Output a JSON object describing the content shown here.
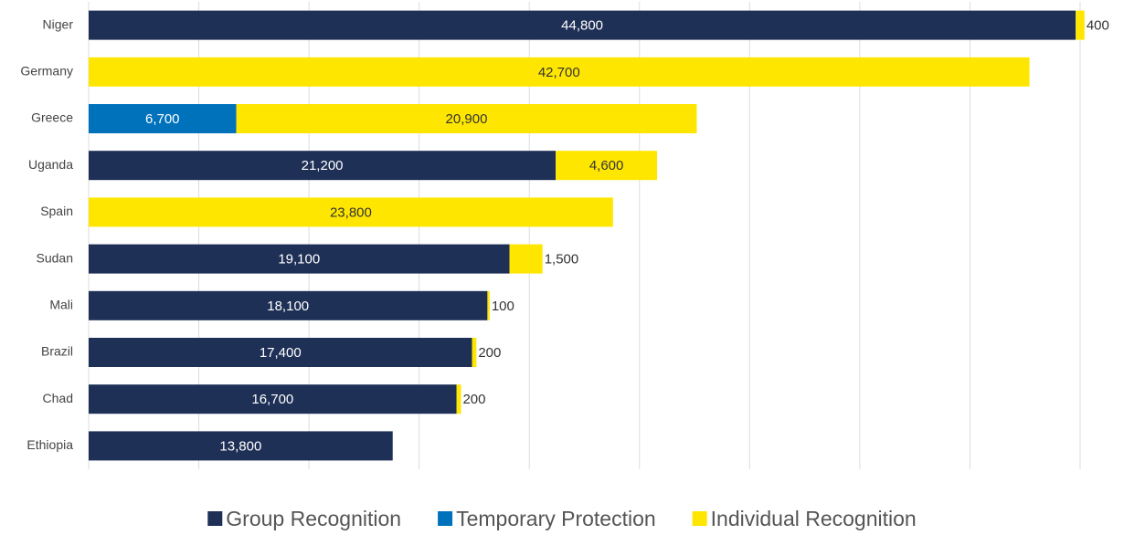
{
  "chart_data": {
    "type": "stacked_barh",
    "categories": [
      "Niger",
      "Germany",
      "Greece",
      "Uganda",
      "Spain",
      "Sudan",
      "Mali",
      "Brazil",
      "Chad",
      "Ethiopia"
    ],
    "series": [
      {
        "name": "Group Recognition",
        "color": "#1f3057",
        "values": [
          44800,
          null,
          null,
          21200,
          null,
          19100,
          18100,
          17400,
          16700,
          13800
        ],
        "value_labels": [
          "44,800",
          null,
          null,
          "21,200",
          null,
          "19,100",
          "18,100",
          "17,400",
          "16,700",
          "13,800"
        ]
      },
      {
        "name": "Temporary Protection",
        "color": "#0072bc",
        "values": [
          null,
          null,
          6700,
          null,
          null,
          null,
          null,
          null,
          null,
          null
        ],
        "value_labels": [
          null,
          null,
          "6,700",
          null,
          null,
          null,
          null,
          null,
          null,
          null
        ]
      },
      {
        "name": "Individual Recognition",
        "color": "#ffe600",
        "values": [
          400,
          42700,
          20900,
          4600,
          23800,
          1500,
          100,
          200,
          200,
          null
        ],
        "value_labels": [
          "400",
          "42,700",
          "20,900",
          "4,600",
          "23,800",
          "1,500",
          "100",
          "200",
          "200",
          null
        ]
      }
    ],
    "xlim": [
      0,
      45000
    ],
    "xticks": [
      0,
      5000,
      10000,
      15000,
      20000,
      25000,
      30000,
      35000,
      40000,
      45000
    ],
    "grid": true
  }
}
